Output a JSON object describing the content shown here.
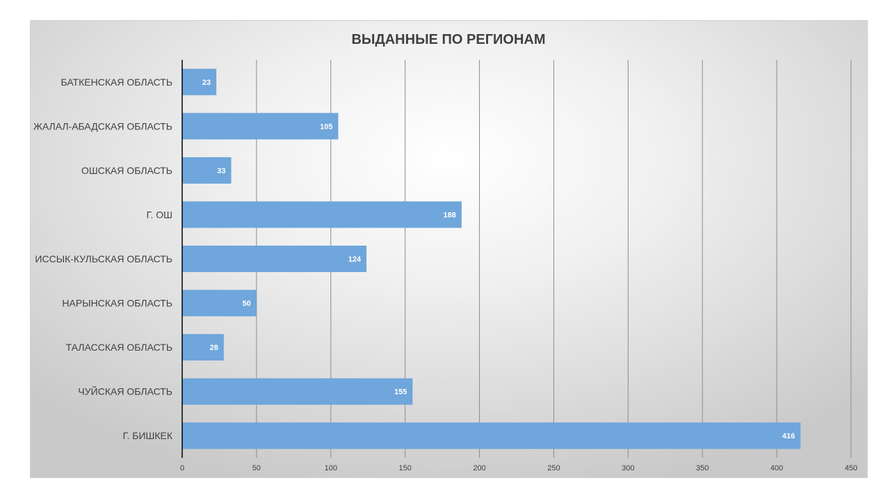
{
  "chart_data": {
    "type": "bar",
    "orientation": "horizontal",
    "title": "ВЫДАННЫЕ ПО РЕГИОНАМ",
    "categories": [
      "БАТКЕНСКАЯ ОБЛАСТЬ",
      "ЖАЛАЛ-АБАДСКАЯ ОБЛАСТЬ",
      "ОШСКАЯ ОБЛАСТЬ",
      "Г. ОШ",
      "ИССЫК-КУЛЬСКАЯ ОБЛАСТЬ",
      "НАРЫНСКАЯ ОБЛАСТЬ",
      "ТАЛАССКАЯ ОБЛАСТЬ",
      "ЧУЙСКАЯ ОБЛАСТЬ",
      "Г. БИШКЕК"
    ],
    "values": [
      23,
      105,
      33,
      188,
      124,
      50,
      28,
      155,
      416
    ],
    "xlim": [
      0,
      450
    ],
    "xticks": [
      0,
      50,
      100,
      150,
      200,
      250,
      300,
      350,
      400,
      450
    ],
    "grid": "vertical",
    "legend": "none",
    "bar_color": "#6fa6db",
    "data_label_color": "#ffffff"
  }
}
